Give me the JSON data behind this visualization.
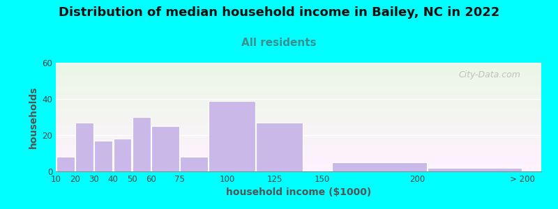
{
  "title": "Distribution of median household income in Bailey, NC in 2022",
  "subtitle": "All residents",
  "xlabel": "household income ($1000)",
  "ylabel": "households",
  "bar_color": "#c9b8e8",
  "bar_edgecolor": "#ffffff",
  "figure_bg": "#00ffff",
  "ylim": [
    0,
    60
  ],
  "yticks": [
    0,
    20,
    40,
    60
  ],
  "bar_heights": [
    8,
    27,
    17,
    18,
    30,
    25,
    8,
    39,
    27,
    0,
    5,
    2
  ],
  "bar_widths": [
    10,
    10,
    10,
    10,
    10,
    15,
    15,
    25,
    25,
    15,
    50,
    50
  ],
  "bar_lefts": [
    10,
    20,
    30,
    40,
    50,
    60,
    75,
    90,
    115,
    140,
    155,
    205
  ],
  "xtick_positions": [
    10,
    20,
    30,
    40,
    50,
    60,
    75,
    100,
    125,
    150,
    200,
    255
  ],
  "xtick_labels": [
    "10",
    "20",
    "30",
    "40",
    "50",
    "60",
    "75",
    "100",
    "125",
    "150",
    "200",
    "> 200"
  ],
  "watermark": "City-Data.com",
  "title_fontsize": 13,
  "subtitle_fontsize": 11,
  "subtitle_color": "#3a9090",
  "axis_label_fontsize": 10,
  "tick_fontsize": 8.5,
  "ylabel_color": "#555555",
  "xlabel_color": "#555555"
}
